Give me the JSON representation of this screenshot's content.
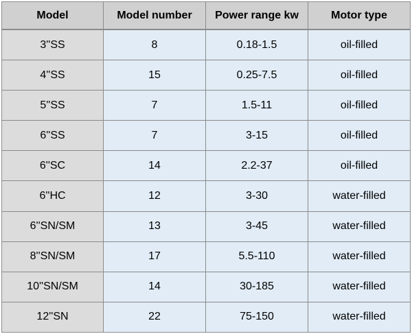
{
  "table": {
    "headers": [
      "Model",
      "Model number",
      "Power range kw",
      "Motor type"
    ],
    "rows": [
      [
        "3''SS",
        "8",
        "0.18-1.5",
        "oil-filled"
      ],
      [
        "4''SS",
        "15",
        "0.25-7.5",
        "oil-filled"
      ],
      [
        "5''SS",
        "7",
        "1.5-11",
        "oil-filled"
      ],
      [
        "6''SS",
        "7",
        "3-15",
        "oil-filled"
      ],
      [
        "6''SC",
        "14",
        "2.2-37",
        "oil-filled"
      ],
      [
        "6''HC",
        "12",
        "3-30",
        "water-filled"
      ],
      [
        "6''SN/SM",
        "13",
        "3-45",
        "water-filled"
      ],
      [
        "8''SN/SM",
        "17",
        "5.5-110",
        "water-filled"
      ],
      [
        "10''SN/SM",
        "14",
        "30-185",
        "water-filled"
      ],
      [
        "12''SN",
        "22",
        "75-150",
        "water-filled"
      ]
    ]
  },
  "colors": {
    "header_bg": "#d0d0d0",
    "first_col_bg": "#dcdcdc",
    "body_bg": "#e1ecf6",
    "border": "#8a8a8a"
  }
}
